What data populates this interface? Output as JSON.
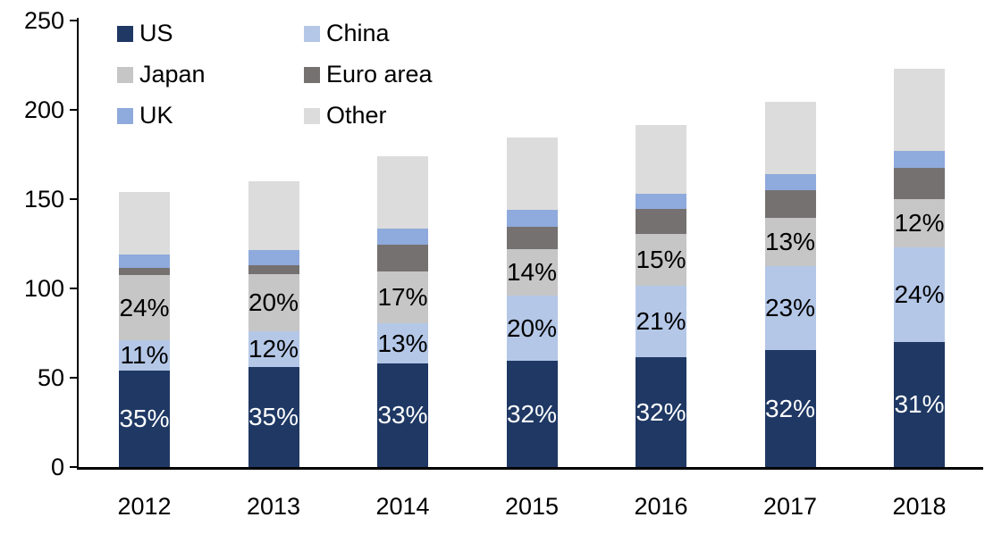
{
  "chart_data": {
    "type": "bar",
    "stacked": true,
    "title": "",
    "xlabel": "",
    "ylabel": "",
    "categories": [
      "2012",
      "2013",
      "2014",
      "2015",
      "2016",
      "2017",
      "2018"
    ],
    "series": [
      {
        "name": "US",
        "color": "#1F3864",
        "values": [
          54,
          56,
          58,
          59.5,
          61.5,
          65.5,
          70
        ],
        "labels": [
          "35%",
          "35%",
          "33%",
          "32%",
          "32%",
          "32%",
          "31%"
        ],
        "label_color": "#FFFFFF"
      },
      {
        "name": "China",
        "color": "#B4C7E7",
        "values": [
          17,
          20,
          22.5,
          36.5,
          40,
          47,
          53
        ],
        "labels": [
          "11%",
          "12%",
          "13%",
          "20%",
          "21%",
          "23%",
          "24%"
        ],
        "label_color": "#000000"
      },
      {
        "name": "Japan",
        "color": "#C6C6C6",
        "values": [
          36.5,
          32,
          29,
          26,
          29,
          27,
          27
        ],
        "labels": [
          "24%",
          "20%",
          "17%",
          "14%",
          "15%",
          "13%",
          "12%"
        ],
        "label_color": "#000000"
      },
      {
        "name": "Euro area",
        "color": "#767171",
        "values": [
          4,
          5,
          15,
          12.5,
          14,
          15.5,
          17.5
        ],
        "labels": null,
        "label_color": null
      },
      {
        "name": "UK",
        "color": "#8FAADC",
        "values": [
          7.5,
          8.5,
          9,
          9.5,
          8.5,
          9,
          9.5
        ],
        "labels": null,
        "label_color": null
      },
      {
        "name": "Other",
        "color": "#DCDCDC",
        "values": [
          35,
          38.5,
          40.5,
          40.5,
          38.5,
          40.5,
          46
        ],
        "labels": null,
        "label_color": null
      }
    ],
    "totals": [
      154,
      160,
      174,
      184.5,
      191.5,
      204.5,
      223
    ],
    "ylim": [
      0,
      250
    ],
    "yticks": [
      0,
      50,
      100,
      150,
      200,
      250
    ],
    "grid": false,
    "legend_position": "top-left",
    "legend_columns": 2,
    "axis_color": "#000000",
    "text_color": "#000000",
    "background_color": "#FFFFFF"
  }
}
